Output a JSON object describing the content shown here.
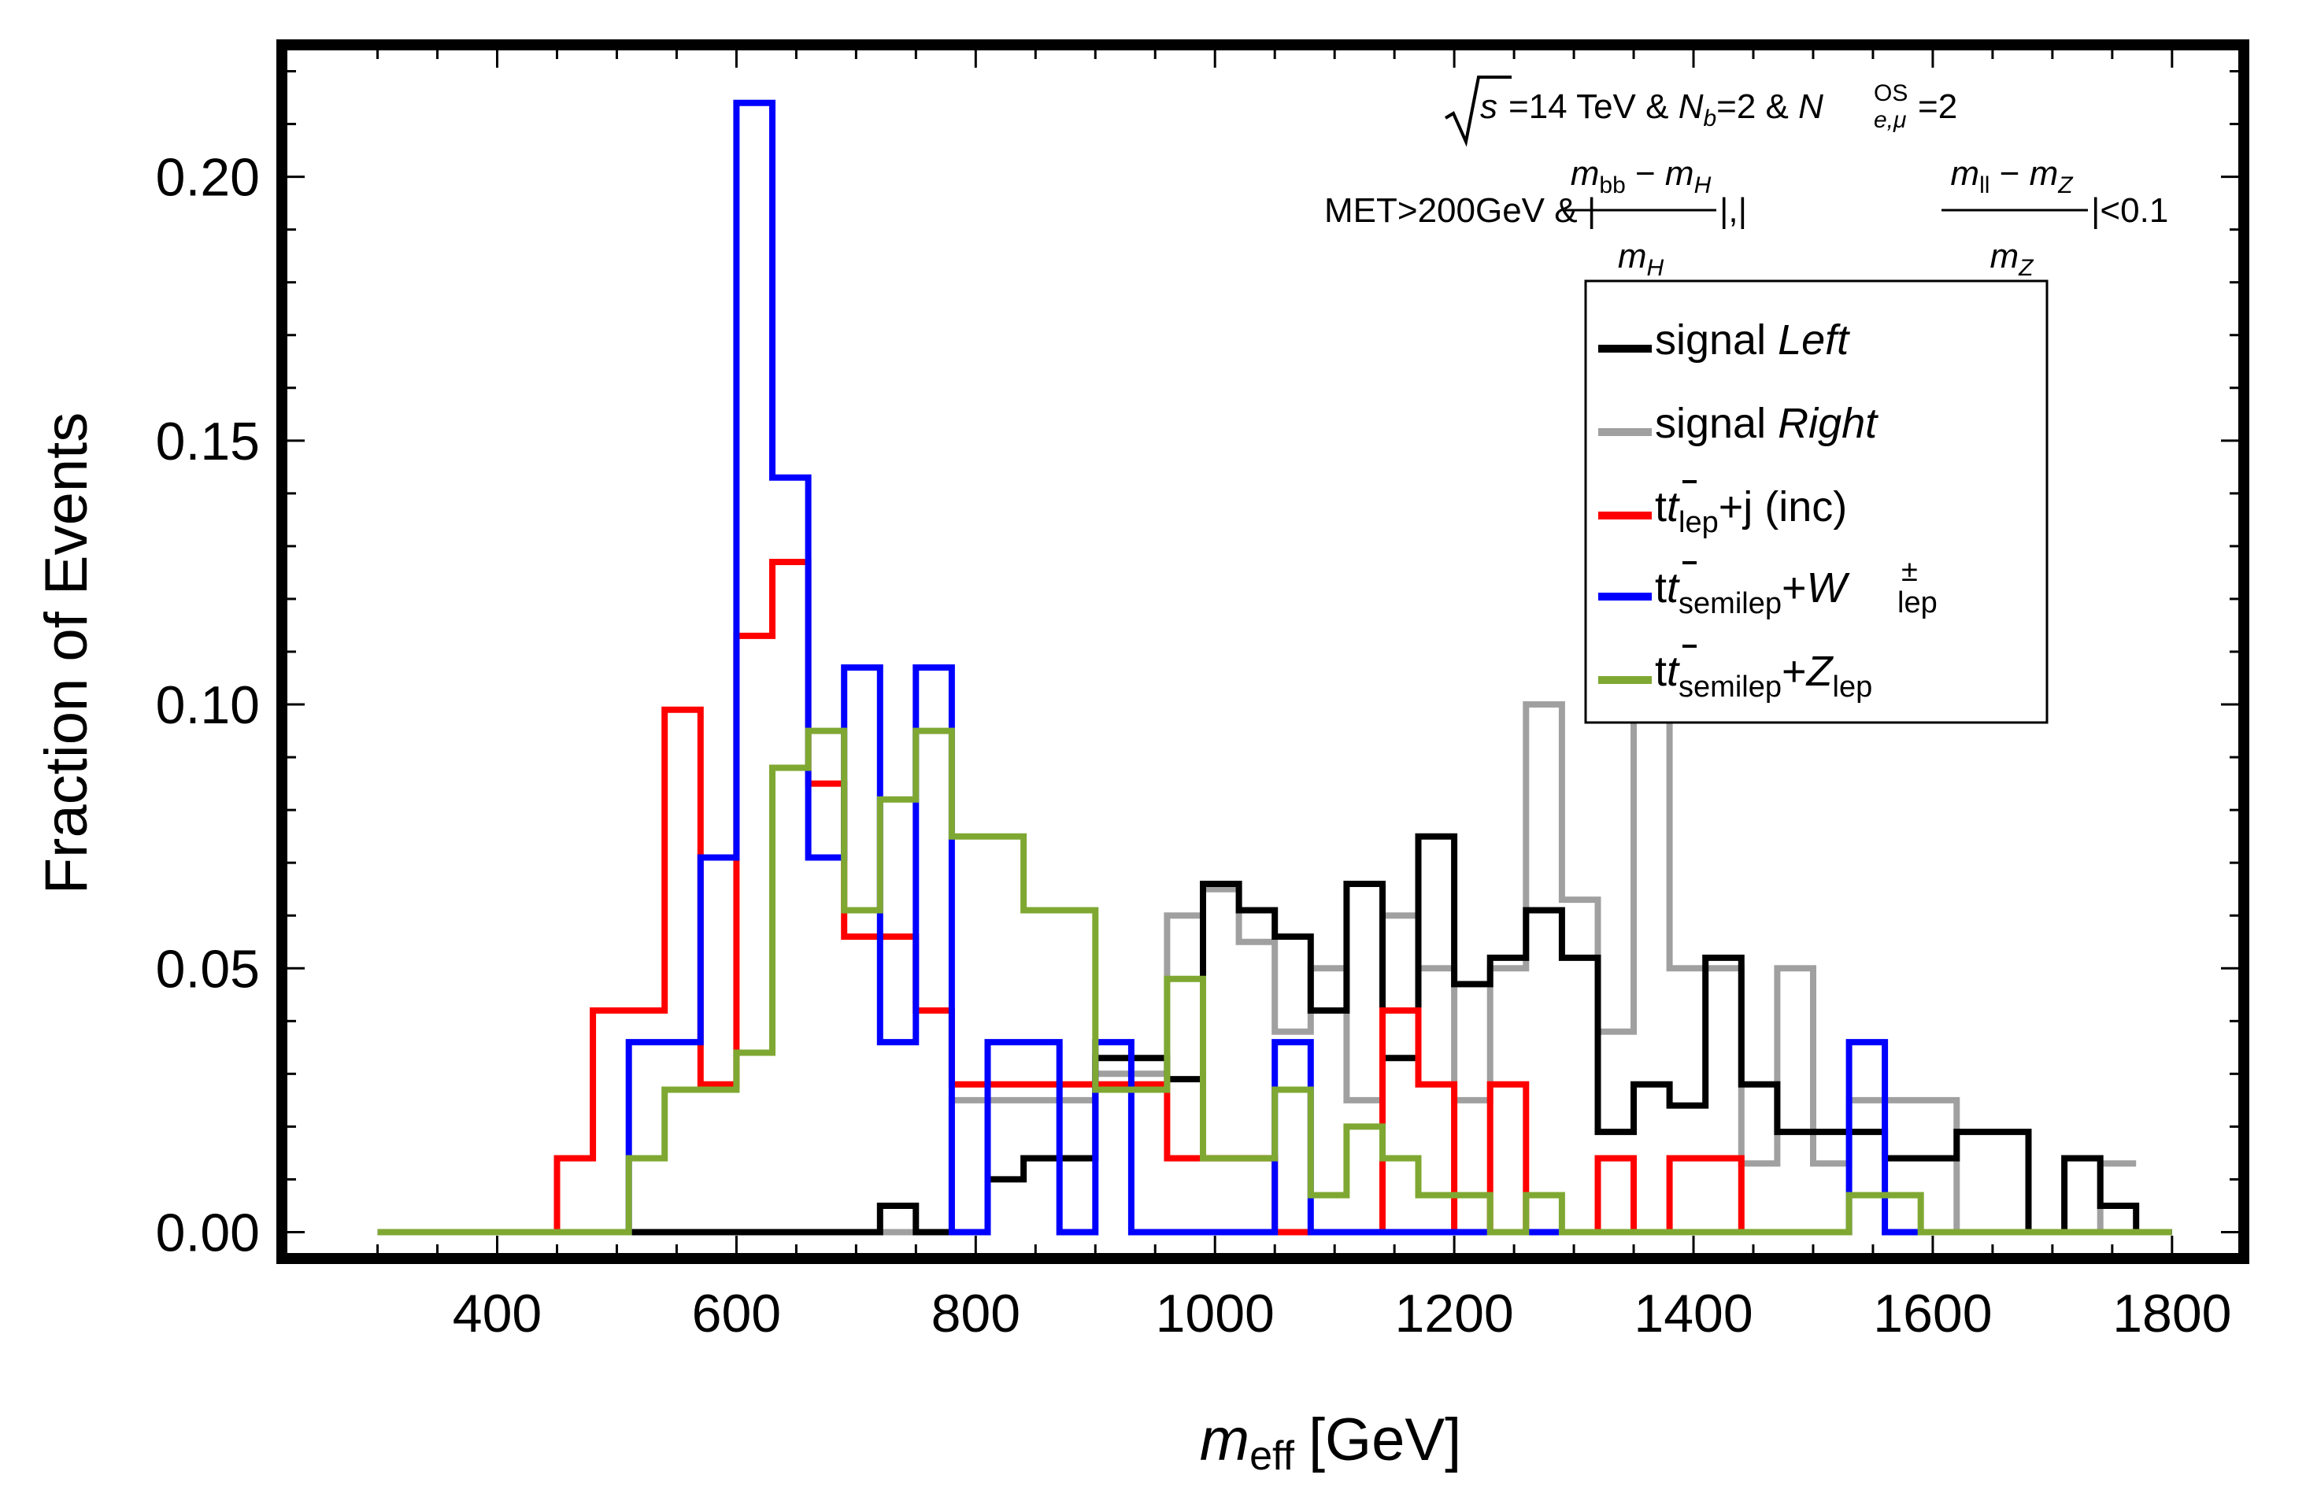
{
  "chart_data": {
    "type": "line",
    "subtype": "step-histogram",
    "xlabel_main": "m",
    "xlabel_sub": "eff",
    "xlabel_unit": "[GeV]",
    "ylabel": "Fraction of Events",
    "xlim": [
      220,
      1860
    ],
    "ylim": [
      -0.005,
      0.225
    ],
    "xticks": [
      400,
      600,
      800,
      1000,
      1200,
      1400,
      1600,
      1800
    ],
    "yticks": [
      0.0,
      0.05,
      0.1,
      0.15,
      0.2
    ],
    "yticklabels": [
      "0.00",
      "0.05",
      "0.10",
      "0.15",
      "0.20"
    ],
    "annotation": {
      "line1": {
        "sqrt_s": "s",
        "energy": "=14 TeV & ",
        "nb_main": "N",
        "nb_sub": "b",
        "nb_val": "=2 & ",
        "nl_main": "N",
        "nl_sup": "OS",
        "nl_sub": "e,μ",
        "nl_val": "=2"
      },
      "line2": {
        "prefix": "MET>200GeV & |",
        "frac1_num": "m",
        "frac1_num_sub": "bb",
        "frac1_num_minus": " − ",
        "frac1_num_m2": "m",
        "frac1_num_m2_sub": "H",
        "frac1_den": "m",
        "frac1_den_sub": "H",
        "mid": "|,|",
        "frac2_num": "m",
        "frac2_num_sub": "ll",
        "frac2_num_minus": " − ",
        "frac2_num_m2": "m",
        "frac2_num_m2_sub": "Z",
        "frac2_den": "m",
        "frac2_den_sub": "Z",
        "suffix": "|<0.1"
      }
    },
    "legend_position": "top-right",
    "series": [
      {
        "name": "signal Left",
        "label_main": "signal ",
        "label_it": "Left",
        "color": "#000000",
        "edges": [
          300,
          510,
          720,
          750,
          780,
          810,
          840,
          870,
          900,
          930,
          960,
          990,
          1020,
          1050,
          1080,
          1110,
          1140,
          1170,
          1200,
          1230,
          1260,
          1290,
          1320,
          1350,
          1380,
          1410,
          1440,
          1470,
          1500,
          1530,
          1560,
          1590,
          1620,
          1650,
          1680,
          1710,
          1740,
          1770,
          1800
        ],
        "values": [
          0.0,
          0.0,
          0.005,
          0.0,
          0.0,
          0.01,
          0.014,
          0.014,
          0.033,
          0.033,
          0.029,
          0.066,
          0.061,
          0.056,
          0.042,
          0.066,
          0.033,
          0.075,
          0.047,
          0.052,
          0.061,
          0.052,
          0.019,
          0.028,
          0.024,
          0.052,
          0.028,
          0.019,
          0.019,
          0.019,
          0.014,
          0.014,
          0.019,
          0.019,
          0.0,
          0.014,
          0.005,
          0.0
        ]
      },
      {
        "name": "signal Right",
        "label_main": "signal ",
        "label_it": "Right",
        "color": "#a0a0a0",
        "edges": [
          720,
          750,
          780,
          810,
          840,
          870,
          900,
          930,
          960,
          990,
          1020,
          1050,
          1080,
          1110,
          1140,
          1170,
          1200,
          1230,
          1260,
          1290,
          1320,
          1350,
          1380,
          1410,
          1440,
          1470,
          1500,
          1530,
          1560,
          1590,
          1620,
          1650,
          1680,
          1710,
          1740,
          1770
        ],
        "values": [
          0.0,
          0.0,
          0.025,
          0.025,
          0.025,
          0.025,
          0.03,
          0.03,
          0.06,
          0.065,
          0.055,
          0.038,
          0.05,
          0.025,
          0.06,
          0.05,
          0.025,
          0.05,
          0.1,
          0.063,
          0.038,
          0.1,
          0.05,
          0.05,
          0.013,
          0.05,
          0.013,
          0.025,
          0.025,
          0.025,
          0.0,
          0.0,
          0.0,
          0.0,
          0.013
        ]
      },
      {
        "name": "tt̄lep+j (inc)",
        "label_t": "t",
        "label_tbar": "t",
        "label_sub": "lep",
        "label_rest": "+j (inc)",
        "color": "#ff0000",
        "edges": [
          300,
          450,
          480,
          510,
          540,
          570,
          600,
          630,
          660,
          690,
          720,
          750,
          780,
          810,
          840,
          870,
          900,
          930,
          960,
          990,
          1020,
          1050,
          1080,
          1110,
          1140,
          1170,
          1200,
          1230,
          1260,
          1290,
          1320,
          1350,
          1380,
          1410,
          1440,
          1470,
          1500
        ],
        "values": [
          0.0,
          0.014,
          0.042,
          0.042,
          0.099,
          0.028,
          0.113,
          0.127,
          0.085,
          0.056,
          0.056,
          0.042,
          0.028,
          0.028,
          0.028,
          0.028,
          0.028,
          0.028,
          0.014,
          0.014,
          0.014,
          0.0,
          0.0,
          0.0,
          0.042,
          0.028,
          0.0,
          0.028,
          0.0,
          0.0,
          0.014,
          0.0,
          0.014,
          0.014,
          0.0,
          0.0
        ]
      },
      {
        "name": "tt̄semilep+W±lep",
        "label_t": "t",
        "label_tbar": "t",
        "label_sub": "semilep",
        "label_plus": "+",
        "label_main2": "W",
        "label_sup2": "±",
        "label_sub2": "lep",
        "color": "#0000ff",
        "edges": [
          300,
          510,
          540,
          570,
          600,
          630,
          660,
          690,
          720,
          750,
          780,
          810,
          840,
          870,
          900,
          930,
          960,
          990,
          1020,
          1050,
          1080,
          1530,
          1560,
          1590,
          1800
        ],
        "values": [
          0.0,
          0.036,
          0.036,
          0.071,
          0.214,
          0.143,
          0.071,
          0.107,
          0.036,
          0.107,
          0.0,
          0.036,
          0.036,
          0.0,
          0.036,
          0.0,
          0.0,
          0.0,
          0.0,
          0.036,
          0.0,
          0.036,
          0.0,
          0.0
        ]
      },
      {
        "name": "tt̄semilep+Zlep",
        "label_t": "t",
        "label_tbar": "t",
        "label_sub": "semilep",
        "label_plus": "+",
        "label_main2": "Z",
        "label_sub2": "lep",
        "color": "#7fa832",
        "edges": [
          300,
          510,
          540,
          570,
          600,
          630,
          660,
          690,
          720,
          750,
          780,
          810,
          840,
          870,
          900,
          930,
          960,
          990,
          1020,
          1050,
          1080,
          1110,
          1140,
          1170,
          1200,
          1230,
          1260,
          1290,
          1320,
          1350,
          1380,
          1410,
          1440,
          1470,
          1500,
          1530,
          1560,
          1590,
          1620,
          1800
        ],
        "values": [
          0.0,
          0.014,
          0.027,
          0.027,
          0.034,
          0.088,
          0.095,
          0.061,
          0.082,
          0.095,
          0.075,
          0.075,
          0.061,
          0.061,
          0.027,
          0.027,
          0.048,
          0.014,
          0.014,
          0.027,
          0.007,
          0.02,
          0.014,
          0.007,
          0.007,
          0.0,
          0.007,
          0.0,
          0.0,
          0.0,
          0.0,
          0.0,
          0.0,
          0.0,
          0.0,
          0.007,
          0.007,
          0.0,
          0.0
        ]
      }
    ]
  }
}
